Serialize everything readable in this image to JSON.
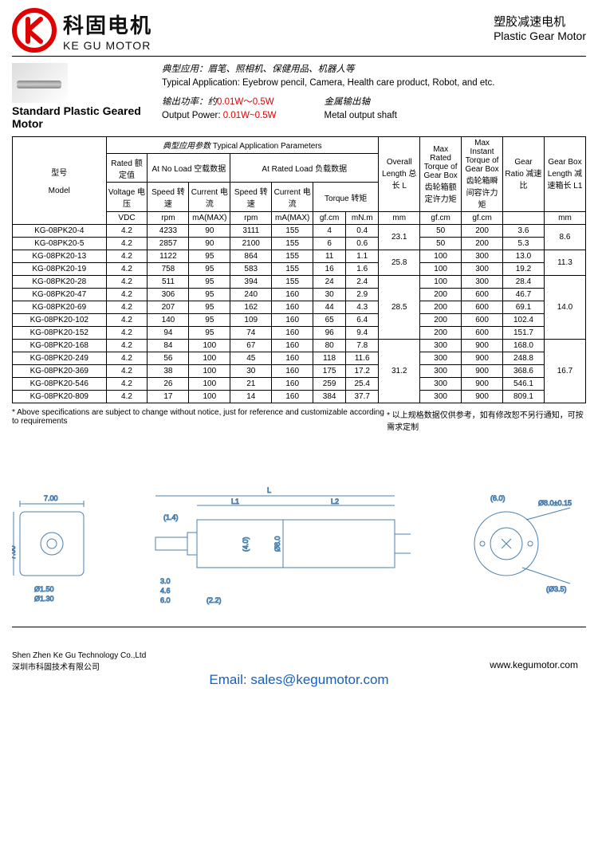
{
  "brand": {
    "cn": "科固电机",
    "en": "KE GU MOTOR",
    "logo_color": "#e00000"
  },
  "category": {
    "cn": "塑胶减速电机",
    "en": "Plastic Gear Motor"
  },
  "product_title": "Standard Plastic Geared Motor",
  "application": {
    "cn": "典型应用：眉笔、照相机、保健用品、机器人等",
    "en": "Typical Application: Eyebrow pencil, Camera, Health care product, Robot,  and etc."
  },
  "power": {
    "cn_label": "输出功率：约",
    "cn_val": "0.01W～0.5W",
    "en_label": "Output Power: ",
    "en_val": "0.01W~0.5W"
  },
  "shaft": {
    "cn": "金属输出轴",
    "en": "Metal output shaft"
  },
  "table": {
    "hdr_params_cn": "典型应用参数",
    "hdr_params_en": "Typical Application Parameters",
    "hdr_model_cn": "型号",
    "hdr_model_en": "Model",
    "hdr_rated_cn": "Rated 额定值",
    "hdr_noload_cn": "At No Load 空载数据",
    "hdr_ratedload": "At Rated Load 负载数据",
    "hdr_len": "Overall Length 总长 L",
    "hdr_maxrated": "Max Rated Torque of Gear Box 齿轮箱额定许力矩",
    "hdr_maxinst": "Max Instant Torque of Gear Box 齿轮箱瞬间容许力矩",
    "hdr_ratio": "Gear Ratio 减速比",
    "hdr_gblen": "Gear Box Length 减速箱长 L1",
    "sub_voltage": "Voltage 电压",
    "u_voltage": "VDC",
    "sub_speed": "Speed 转速",
    "u_speed": "rpm",
    "sub_current": "Current 电流",
    "u_current": "mA(MAX)",
    "sub_speed2": "Speed 转速",
    "u_speed2": "rpm",
    "sub_current2": "Current 电流",
    "u_current2": "mA(MAX)",
    "sub_torque": "Torque 转矩",
    "u_gfcm": "gf.cm",
    "u_mnm": "mN.m",
    "u_mm": "mm",
    "u_gfcm2": "gf.cm",
    "u_gfcm3": "gf.cm",
    "u_mm2": "mm",
    "rows": [
      {
        "m": "KG-08PK20-4",
        "v": "4.2",
        "s": "4233",
        "c": "90",
        "s2": "3111",
        "c2": "155",
        "tg": "4",
        "tm": "0.4",
        "L": "23.1",
        "mr": "50",
        "mi": "200",
        "r": "3.6",
        "l1": "8.6",
        "L_rs": 2,
        "l1_rs": 2
      },
      {
        "m": "KG-08PK20-5",
        "v": "4.2",
        "s": "2857",
        "c": "90",
        "s2": "2100",
        "c2": "155",
        "tg": "6",
        "tm": "0.6",
        "mr": "50",
        "mi": "200",
        "r": "5.3"
      },
      {
        "m": "KG-08PK20-13",
        "v": "4.2",
        "s": "1122",
        "c": "95",
        "s2": "864",
        "c2": "155",
        "tg": "11",
        "tm": "1.1",
        "L": "25.8",
        "mr": "100",
        "mi": "300",
        "r": "13.0",
        "l1": "11.3",
        "L_rs": 2,
        "l1_rs": 2
      },
      {
        "m": "KG-08PK20-19",
        "v": "4.2",
        "s": "758",
        "c": "95",
        "s2": "583",
        "c2": "155",
        "tg": "16",
        "tm": "1.6",
        "mr": "100",
        "mi": "300",
        "r": "19.2"
      },
      {
        "m": "KG-08PK20-28",
        "v": "4.2",
        "s": "511",
        "c": "95",
        "s2": "394",
        "c2": "155",
        "tg": "24",
        "tm": "2.4",
        "L": "28.5",
        "mr": "100",
        "mi": "300",
        "r": "28.4",
        "l1": "14.0",
        "L_rs": 5,
        "l1_rs": 5
      },
      {
        "m": "KG-08PK20-47",
        "v": "4.2",
        "s": "306",
        "c": "95",
        "s2": "240",
        "c2": "160",
        "tg": "30",
        "tm": "2.9",
        "mr": "200",
        "mi": "600",
        "r": "46.7"
      },
      {
        "m": "KG-08PK20-69",
        "v": "4.2",
        "s": "207",
        "c": "95",
        "s2": "162",
        "c2": "160",
        "tg": "44",
        "tm": "4.3",
        "mr": "200",
        "mi": "600",
        "r": "69.1"
      },
      {
        "m": "KG-08PK20-102",
        "v": "4.2",
        "s": "140",
        "c": "95",
        "s2": "109",
        "c2": "160",
        "tg": "65",
        "tm": "6.4",
        "mr": "200",
        "mi": "600",
        "r": "102.4"
      },
      {
        "m": "KG-08PK20-152",
        "v": "4.2",
        "s": "94",
        "c": "95",
        "s2": "74",
        "c2": "160",
        "tg": "96",
        "tm": "9.4",
        "mr": "200",
        "mi": "600",
        "r": "151.7"
      },
      {
        "m": "KG-08PK20-168",
        "v": "4.2",
        "s": "84",
        "c": "100",
        "s2": "67",
        "c2": "160",
        "tg": "80",
        "tm": "7.8",
        "L": "31.2",
        "mr": "300",
        "mi": "900",
        "r": "168.0",
        "l1": "16.7",
        "L_rs": 5,
        "l1_rs": 5
      },
      {
        "m": "KG-08PK20-249",
        "v": "4.2",
        "s": "56",
        "c": "100",
        "s2": "45",
        "c2": "160",
        "tg": "118",
        "tm": "11.6",
        "mr": "300",
        "mi": "900",
        "r": "248.8"
      },
      {
        "m": "KG-08PK20-369",
        "v": "4.2",
        "s": "38",
        "c": "100",
        "s2": "30",
        "c2": "160",
        "tg": "175",
        "tm": "17.2",
        "mr": "300",
        "mi": "900",
        "r": "368.6"
      },
      {
        "m": "KG-08PK20-546",
        "v": "4.2",
        "s": "26",
        "c": "100",
        "s2": "21",
        "c2": "160",
        "tg": "259",
        "tm": "25.4",
        "mr": "300",
        "mi": "900",
        "r": "546.1"
      },
      {
        "m": "KG-08PK20-809",
        "v": "4.2",
        "s": "17",
        "c": "100",
        "s2": "14",
        "c2": "160",
        "tg": "384",
        "tm": "37.7",
        "mr": "300",
        "mi": "900",
        "r": "809.1"
      }
    ]
  },
  "note_en": "* Above specifications are subject to change without notice, just for reference and customizable according to requirements",
  "note_cn": "* 以上规格数据仅供参考，如有修改恕不另行通知，可按需求定制",
  "drawing_dims": {
    "w": "7.00",
    "h": "7.00",
    "shaft_d": "Ø1.50",
    "hole_d": "Ø1.30",
    "L": "L",
    "L1": "L1",
    "L2": "L2",
    "s": "3.0",
    "flat": "4.6",
    "step": "6.0",
    "t": "(1.4)",
    "od": "Ø8.0±0.15",
    "dia": "(6.0)",
    "cross": "(Ø3.5)",
    "body": "Ø8.0",
    "pin": "(2.2)",
    "t2": "(4.0)"
  },
  "footer": {
    "co_en": "Shen Zhen Ke Gu Technology Co.,Ltd",
    "co_cn": "深圳市科固技术有限公司",
    "email_label": "Email: ",
    "email": "sales@kegumotor.com",
    "web": "www.kegumotor.com"
  },
  "colors": {
    "accent": "#e00000",
    "line": "#000000",
    "drawing": "#4a80b0",
    "link": "#1560c0"
  }
}
